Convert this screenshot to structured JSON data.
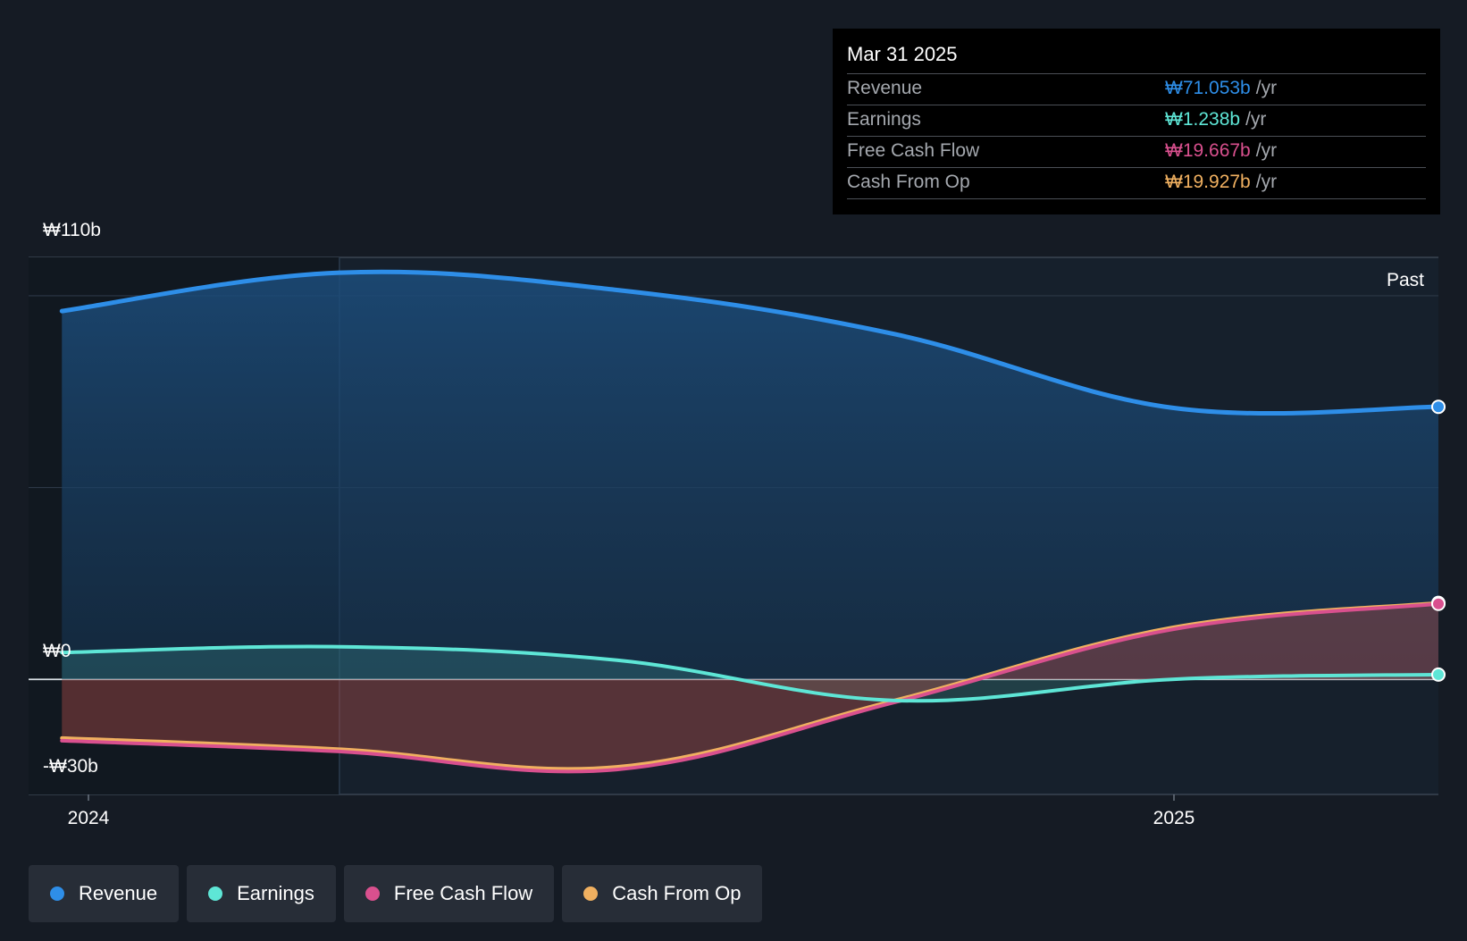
{
  "tooltip": {
    "date": "Mar 31 2025",
    "rows": [
      {
        "label": "Revenue",
        "value": "₩71.053b",
        "unit": "/yr",
        "color": "#2e8ee8"
      },
      {
        "label": "Earnings",
        "value": "₩1.238b",
        "unit": "/yr",
        "color": "#5ee6d6"
      },
      {
        "label": "Free Cash Flow",
        "value": "₩19.667b",
        "unit": "/yr",
        "color": "#d9508e"
      },
      {
        "label": "Cash From Op",
        "value": "₩19.927b",
        "unit": "/yr",
        "color": "#f0b060"
      }
    ]
  },
  "legend": [
    {
      "label": "Revenue",
      "color": "#2e8ee8"
    },
    {
      "label": "Earnings",
      "color": "#5ee6d6"
    },
    {
      "label": "Free Cash Flow",
      "color": "#d9508e"
    },
    {
      "label": "Cash From Op",
      "color": "#f0b060"
    }
  ],
  "chart_data": {
    "type": "area",
    "title": "",
    "past_label": "Past",
    "y_tick_labels": [
      {
        "value": 110,
        "label": "₩110b"
      },
      {
        "value": 0,
        "label": "₩0"
      },
      {
        "value": -30,
        "label": "-₩30b"
      }
    ],
    "x_tick_labels": [
      {
        "value": 2024.0,
        "label": "2024"
      },
      {
        "value": 2025.0,
        "label": "2025"
      }
    ],
    "ylim": [
      -30,
      110
    ],
    "xlim": [
      2023.97,
      2025.24
    ],
    "gridlines": [
      100,
      50,
      0
    ],
    "highlight_x": 2024.25,
    "series": [
      {
        "name": "Revenue",
        "color": "#2e8ee8",
        "x": [
          2024.0,
          2024.25,
          2024.5,
          2024.75,
          2025.0,
          2025.24
        ],
        "values": [
          96,
          106,
          101.5,
          90,
          70.8,
          71.05
        ]
      },
      {
        "name": "Earnings",
        "color": "#5ee6d6",
        "x": [
          2024.0,
          2024.25,
          2024.5,
          2024.75,
          2025.0,
          2025.24
        ],
        "values": [
          7,
          8.5,
          5,
          -5.5,
          0,
          1.24
        ]
      },
      {
        "name": "Free Cash Flow",
        "color": "#d9508e",
        "x": [
          2024.0,
          2024.25,
          2024.5,
          2024.75,
          2025.0,
          2025.24
        ],
        "values": [
          -16,
          -18.8,
          -23.5,
          -6,
          13,
          19.67
        ]
      },
      {
        "name": "Cash From Op",
        "color": "#f0b060",
        "x": [
          2024.0,
          2024.25,
          2024.5,
          2024.75,
          2025.0,
          2025.24
        ],
        "values": [
          -15.3,
          -18.2,
          -22.8,
          -5.5,
          13.5,
          19.93
        ]
      }
    ]
  }
}
